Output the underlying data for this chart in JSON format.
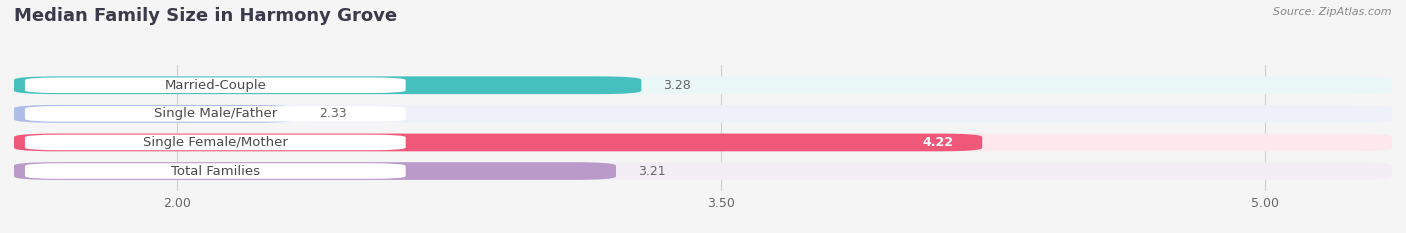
{
  "title": "Median Family Size in Harmony Grove",
  "source": "Source: ZipAtlas.com",
  "categories": [
    "Married-Couple",
    "Single Male/Father",
    "Single Female/Mother",
    "Total Families"
  ],
  "values": [
    3.28,
    2.33,
    4.22,
    3.21
  ],
  "bar_colors": [
    "#45c0bf",
    "#adbde8",
    "#f0587a",
    "#b99ac8"
  ],
  "bar_bg_colors": [
    "#eaf7f7",
    "#eef1f8",
    "#fce8ed",
    "#f3eef6"
  ],
  "label_bg_color": "#ffffff",
  "xlim_min": 1.55,
  "xlim_max": 5.35,
  "xticks": [
    2.0,
    3.5,
    5.0
  ],
  "tick_labels": [
    "2.00",
    "3.50",
    "5.00"
  ],
  "bar_height": 0.62,
  "bar_gap": 0.38,
  "label_fontsize": 9.5,
  "title_fontsize": 13,
  "value_fontsize": 9,
  "label_text_color": "#4a4a4a",
  "value_color_inside": "#ffffff",
  "value_color_outside": "#666666",
  "background_color": "#f5f5f5",
  "grid_color": "#d0d0d0",
  "title_color": "#3a3a4a",
  "source_color": "#888888"
}
